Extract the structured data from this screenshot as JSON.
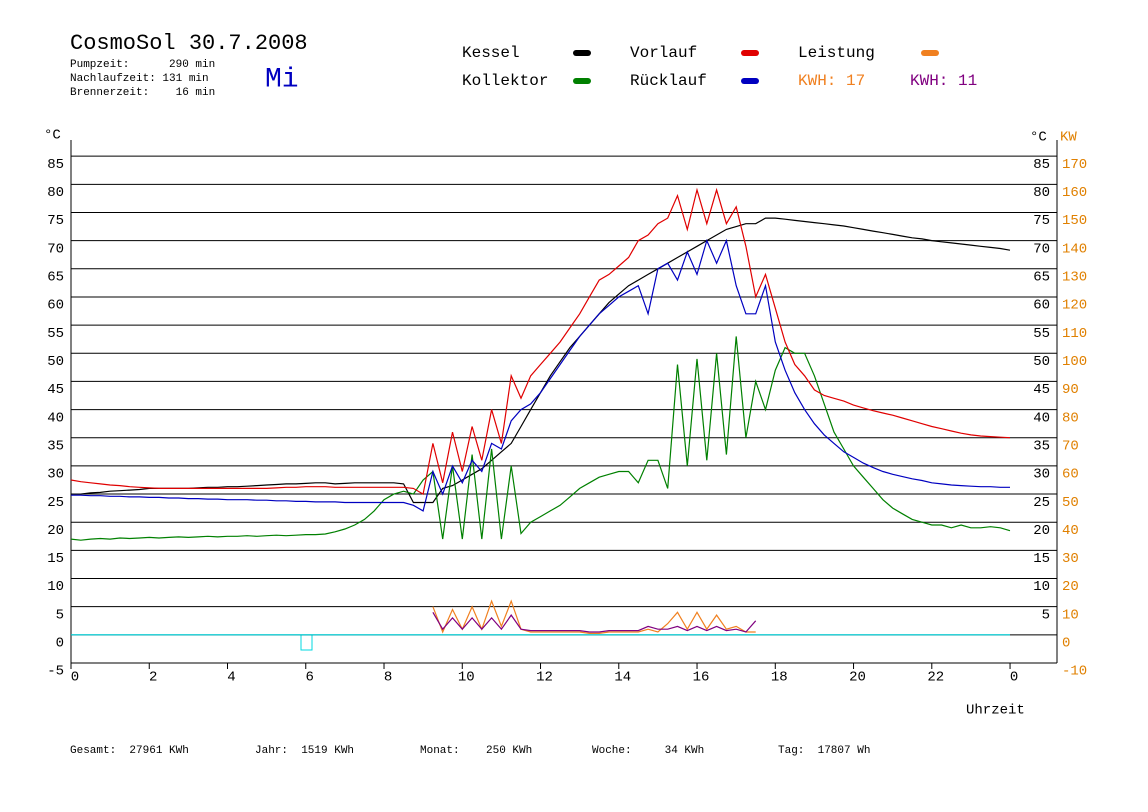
{
  "header": {
    "title": "CosmoSol 30.7.2008",
    "lines": [
      "Pumpzeit:      290 min",
      "Nachlaufzeit: 131 min",
      "Brennerzeit:    16 min"
    ],
    "day": "Mi"
  },
  "footer": [
    "Gesamt:  27961 KWh",
    "Jahr:  1519 KWh",
    "Monat:    250 KWh",
    "Woche:     34 KWh",
    "Tag:  17807 Wh"
  ],
  "chart_data": {
    "type": "line",
    "x_label": "Uhrzeit",
    "y_label": "°C",
    "y2_unit_label": "°C",
    "y2_label": "KW",
    "y2_color": "#e08000",
    "xlim": [
      0,
      25.2
    ],
    "xticks": [
      0,
      2,
      4,
      6,
      8,
      10,
      12,
      14,
      16,
      18,
      20,
      22,
      {
        "value": 24,
        "label": "0"
      }
    ],
    "ylim": [
      -5,
      90
    ],
    "yticks": [
      -5,
      0,
      5,
      10,
      15,
      20,
      25,
      30,
      35,
      40,
      45,
      50,
      55,
      60,
      65,
      70,
      75,
      80,
      85
    ],
    "yticks_right": [
      5,
      10,
      15,
      20,
      25,
      30,
      35,
      40,
      45,
      50,
      55,
      60,
      65,
      70,
      75,
      80,
      85
    ],
    "y2lim": [
      -10,
      180
    ],
    "y2ticks": [
      -10,
      0,
      10,
      20,
      30,
      40,
      50,
      60,
      70,
      80,
      90,
      100,
      110,
      120,
      130,
      140,
      150,
      160,
      170
    ],
    "grid": true,
    "x": [
      0,
      0.25,
      0.5,
      0.75,
      1,
      1.25,
      1.5,
      1.75,
      2,
      2.25,
      2.5,
      2.75,
      3,
      3.25,
      3.5,
      3.75,
      4,
      4.25,
      4.5,
      4.75,
      5,
      5.25,
      5.5,
      5.75,
      6,
      6.25,
      6.5,
      6.75,
      7,
      7.25,
      7.5,
      7.75,
      8,
      8.25,
      8.5,
      8.75,
      9,
      9.25,
      9.5,
      9.75,
      10,
      10.25,
      10.5,
      10.75,
      11,
      11.25,
      11.5,
      11.75,
      12,
      12.25,
      12.5,
      12.75,
      13,
      13.25,
      13.5,
      13.75,
      14,
      14.25,
      14.5,
      14.75,
      15,
      15.25,
      15.5,
      15.75,
      16,
      16.25,
      16.5,
      16.75,
      17,
      17.25,
      17.5,
      17.75,
      18,
      18.25,
      18.5,
      18.75,
      19,
      19.25,
      19.5,
      19.75,
      20,
      20.25,
      20.5,
      20.75,
      21,
      21.25,
      21.5,
      21.75,
      22,
      22.25,
      22.5,
      22.75,
      23,
      23.25,
      23.5,
      23.75,
      24
    ],
    "series": [
      {
        "name": "Kessel",
        "color": "#000000",
        "values": [
          25,
          25,
          25.2,
          25.3,
          25.5,
          25.6,
          25.7,
          25.8,
          26,
          26,
          26,
          26,
          26,
          26.1,
          26.2,
          26.2,
          26.3,
          26.3,
          26.4,
          26.5,
          26.6,
          26.7,
          26.8,
          26.8,
          26.9,
          27,
          27,
          26.8,
          26.9,
          27,
          27,
          27,
          27,
          27,
          26.8,
          23.5,
          23.5,
          23.5,
          26,
          26.5,
          27.5,
          28.5,
          29.5,
          31,
          32.5,
          34,
          37,
          40,
          43,
          46,
          48.5,
          51,
          53,
          55,
          57,
          59,
          60.5,
          62,
          63,
          64,
          65,
          66,
          67,
          68,
          69,
          70,
          71,
          72,
          72.5,
          73,
          73,
          74,
          74,
          73.8,
          73.6,
          73.4,
          73.2,
          73,
          72.8,
          72.6,
          72.3,
          72,
          71.7,
          71.4,
          71.1,
          70.8,
          70.5,
          70.3,
          70,
          69.8,
          69.6,
          69.4,
          69.2,
          69,
          68.8,
          68.6,
          68.3
        ]
      },
      {
        "name": "Kollektor",
        "color": "#008000",
        "values": [
          17,
          16.8,
          17,
          17.1,
          17,
          17.2,
          17.1,
          17.2,
          17.3,
          17.2,
          17.3,
          17.4,
          17.3,
          17.4,
          17.5,
          17.4,
          17.5,
          17.5,
          17.6,
          17.5,
          17.6,
          17.7,
          17.6,
          17.7,
          17.8,
          17.8,
          17.9,
          18.3,
          18.8,
          19.5,
          20.5,
          22,
          24,
          25,
          25.5,
          25,
          27.5,
          29,
          17,
          30,
          17,
          32,
          17,
          33,
          17,
          30,
          18,
          20,
          21,
          22,
          23,
          24.5,
          26,
          27,
          28,
          28.5,
          29,
          29,
          27,
          31,
          31,
          26,
          48,
          30,
          49,
          31,
          50,
          32,
          53,
          35,
          45,
          40,
          47,
          51,
          50,
          50,
          46,
          41,
          36,
          33,
          30,
          28,
          26,
          24,
          22.5,
          21.5,
          20.5,
          20,
          19.5,
          19.5,
          19,
          19.5,
          19,
          19,
          19.2,
          19,
          18.5
        ]
      },
      {
        "name": "Vorlauf",
        "color": "#e00000",
        "values": [
          27.5,
          27.2,
          27,
          26.8,
          26.6,
          26.5,
          26.3,
          26.2,
          26.1,
          26,
          26,
          26,
          26,
          26,
          26,
          26,
          26,
          26,
          26,
          26,
          26,
          26.1,
          26.2,
          26.2,
          26.3,
          26.3,
          26.3,
          26.2,
          26.2,
          26.2,
          26.2,
          26.2,
          26.2,
          26.2,
          26.2,
          26,
          25,
          34,
          27,
          36,
          29,
          37,
          31,
          40,
          34,
          46,
          42,
          46,
          48,
          50,
          52,
          54.5,
          57,
          60,
          63,
          64,
          65.5,
          67,
          70,
          71,
          73,
          74,
          78,
          72,
          79,
          73,
          79,
          73,
          76,
          69,
          60,
          64,
          58,
          52,
          48,
          46,
          43.5,
          42.5,
          42,
          41.5,
          40.8,
          40.3,
          39.8,
          39.4,
          39,
          38.5,
          38,
          37.5,
          37,
          36.6,
          36.2,
          35.8,
          35.5,
          35.3,
          35.2,
          35.1,
          35
        ]
      },
      {
        "name": "Rücklauf",
        "color": "#0000c0",
        "values": [
          24.8,
          24.8,
          24.7,
          24.7,
          24.6,
          24.6,
          24.5,
          24.5,
          24.4,
          24.4,
          24.3,
          24.3,
          24.2,
          24.2,
          24.1,
          24.1,
          24,
          24,
          24,
          23.9,
          23.9,
          23.8,
          23.8,
          23.7,
          23.7,
          23.6,
          23.6,
          23.6,
          23.5,
          23.5,
          23.5,
          23.5,
          23.5,
          23.5,
          23.5,
          23,
          22,
          29,
          25,
          30,
          27,
          31,
          29,
          34,
          33,
          38,
          40,
          41,
          43,
          45.5,
          48,
          50.5,
          53,
          55,
          57,
          58.5,
          60,
          61,
          62,
          57,
          65,
          66,
          63,
          68,
          64,
          70,
          66,
          70,
          62,
          57,
          57,
          62,
          52,
          47,
          43,
          40,
          37.5,
          35.5,
          34,
          32.5,
          31.5,
          30.5,
          29.7,
          29,
          28.5,
          28.1,
          27.7,
          27.4,
          27,
          26.8,
          26.6,
          26.5,
          26.4,
          26.3,
          26.3,
          26.2,
          26.2
        ]
      },
      {
        "name": "Leistung",
        "color": "#f08020",
        "axis": "y2",
        "kwh": "KWH: 17",
        "values": [
          null,
          null,
          null,
          null,
          null,
          null,
          null,
          null,
          null,
          null,
          null,
          null,
          null,
          null,
          null,
          null,
          null,
          null,
          null,
          null,
          null,
          null,
          null,
          null,
          null,
          null,
          null,
          null,
          null,
          null,
          null,
          null,
          null,
          null,
          null,
          null,
          null,
          10,
          1,
          9,
          2,
          10,
          2,
          12,
          3,
          12,
          2,
          1,
          1,
          1,
          1,
          1,
          1,
          0.5,
          0.5,
          1,
          1,
          1,
          1,
          2,
          1,
          4,
          8,
          2,
          8,
          2,
          7,
          2,
          3,
          1,
          1,
          null,
          null,
          null,
          null,
          null,
          null,
          null,
          null,
          null,
          null,
          null,
          null,
          null,
          null,
          null,
          null,
          null,
          null,
          null,
          null,
          null,
          null,
          null,
          null,
          null,
          null
        ]
      },
      {
        "color": "#800080",
        "axis": "y2",
        "kwh": "KWH: 11",
        "values": [
          null,
          null,
          null,
          null,
          null,
          null,
          null,
          null,
          null,
          null,
          null,
          null,
          null,
          null,
          null,
          null,
          null,
          null,
          null,
          null,
          null,
          null,
          null,
          null,
          null,
          null,
          null,
          null,
          null,
          null,
          null,
          null,
          null,
          null,
          null,
          null,
          null,
          8,
          2,
          6,
          2,
          6,
          2,
          6,
          2,
          7,
          2,
          1.5,
          1.5,
          1.5,
          1.5,
          1.5,
          1.5,
          1,
          1,
          1.5,
          1.5,
          1.5,
          1.5,
          3,
          2,
          2,
          3,
          1.5,
          3,
          1.5,
          3,
          1.5,
          2,
          1,
          5,
          null,
          null,
          null,
          null,
          null,
          null,
          null,
          null,
          null,
          null,
          null,
          null,
          null,
          null,
          null,
          null,
          null,
          null,
          null,
          null,
          null,
          null,
          null,
          null,
          null,
          null
        ]
      },
      {
        "color": "#00d8e0",
        "axis": "y2",
        "x": [
          0,
          24
        ],
        "values": [
          0,
          0
        ]
      }
    ]
  }
}
